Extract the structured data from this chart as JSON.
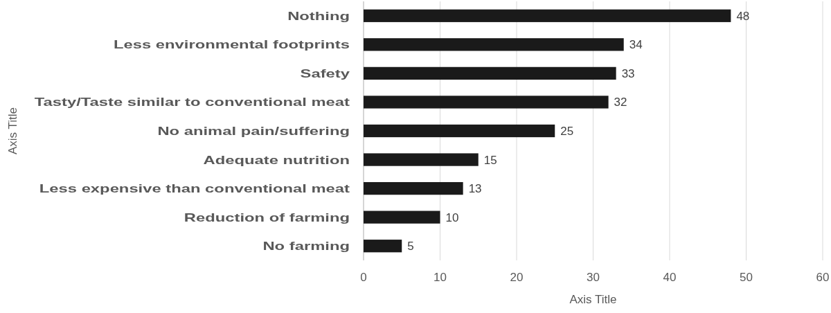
{
  "chart_data": {
    "type": "bar",
    "orientation": "horizontal",
    "xlabel": "Axis Title",
    "ylabel": "Axis Title",
    "categories": [
      "Nothing",
      "Less environmental footprints",
      "Safety",
      "Tasty/Taste similar to conventional meat",
      "No animal pain/suffering",
      "Adequate nutrition",
      "Less expensive than conventional meat",
      "Reduction of farming",
      "No farming"
    ],
    "values": [
      48,
      34,
      33,
      32,
      25,
      15,
      13,
      10,
      5
    ],
    "color": "#1a1a1a",
    "data_labels": true,
    "xlim": [
      0,
      60
    ],
    "xticks": [
      0,
      10,
      20,
      30,
      40,
      50,
      60
    ],
    "grid": "x"
  }
}
